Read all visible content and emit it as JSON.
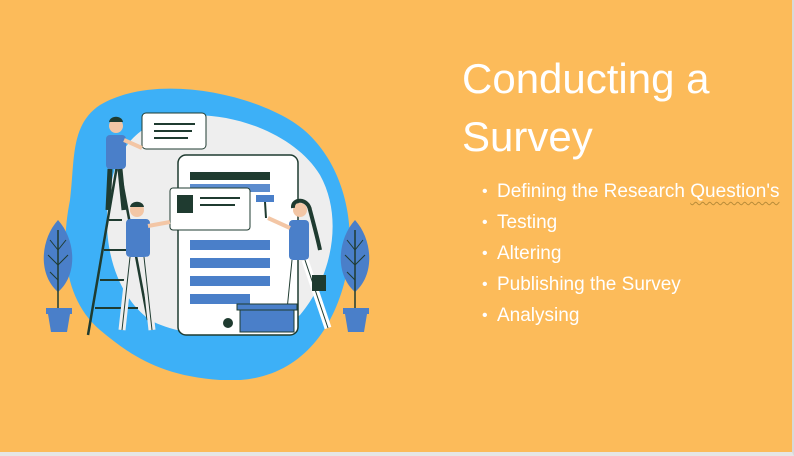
{
  "slide": {
    "title": "Conducting a Survey",
    "bullets": [
      {
        "text": "Defining the Research ",
        "flagged": "Question's"
      },
      {
        "text": "Testing"
      },
      {
        "text": "Altering"
      },
      {
        "text": "Publishing the Survey"
      },
      {
        "text": "Analysing"
      }
    ]
  },
  "colors": {
    "background": "#FCBB5A",
    "blob": "#3DB0F7",
    "accent_blue": "#4A7FC9",
    "dark_green": "#1F3B30"
  },
  "illustration": {
    "icon": "survey-people-illustration-icon"
  }
}
